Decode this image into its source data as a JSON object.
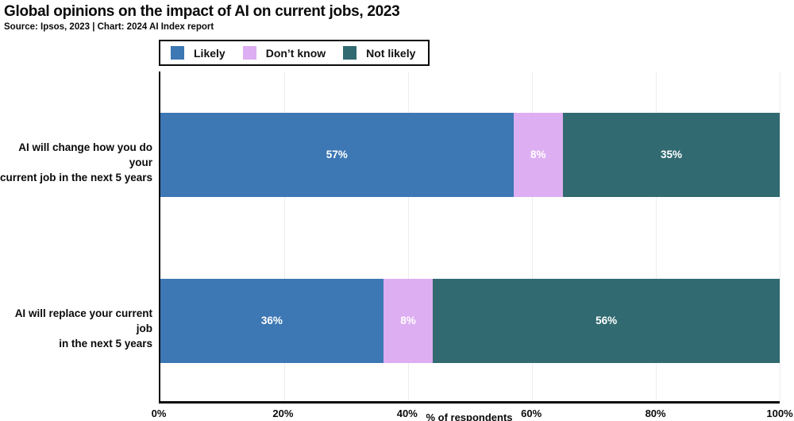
{
  "header": {
    "title": "Global opinions on the impact of AI on current jobs, 2023",
    "subtitle": "Source: Ipsos, 2023 | Chart: 2024 AI Index report"
  },
  "chart_data": {
    "type": "bar",
    "orientation": "horizontal",
    "stacked": true,
    "title": "Global opinions on the impact of AI on current jobs, 2023",
    "categories": [
      "AI will change how you do your current job in the next 5 years",
      "AI will replace your current job in the next 5 years"
    ],
    "categories_lines": [
      [
        "AI will change how you do your",
        "current job in the next 5 years"
      ],
      [
        "AI will replace your current job",
        "in the next 5 years"
      ]
    ],
    "series": [
      {
        "name": "Likely",
        "color": "#3d77b4",
        "values": [
          57,
          36
        ]
      },
      {
        "name": "Don’t know",
        "color": "#ddaef2",
        "values": [
          8,
          8
        ]
      },
      {
        "name": "Not likely",
        "color": "#316a70",
        "values": [
          35,
          56
        ]
      }
    ],
    "value_suffix": "%",
    "xlabel": "% of respondents",
    "xlim": [
      0,
      100
    ],
    "x_tick_values": [
      0,
      20,
      40,
      60,
      80,
      100
    ],
    "x_tick_labels": [
      "0%",
      "20%",
      "40%",
      "60%",
      "80%",
      "100%"
    ],
    "grid": true,
    "legend_position": "top-left"
  }
}
